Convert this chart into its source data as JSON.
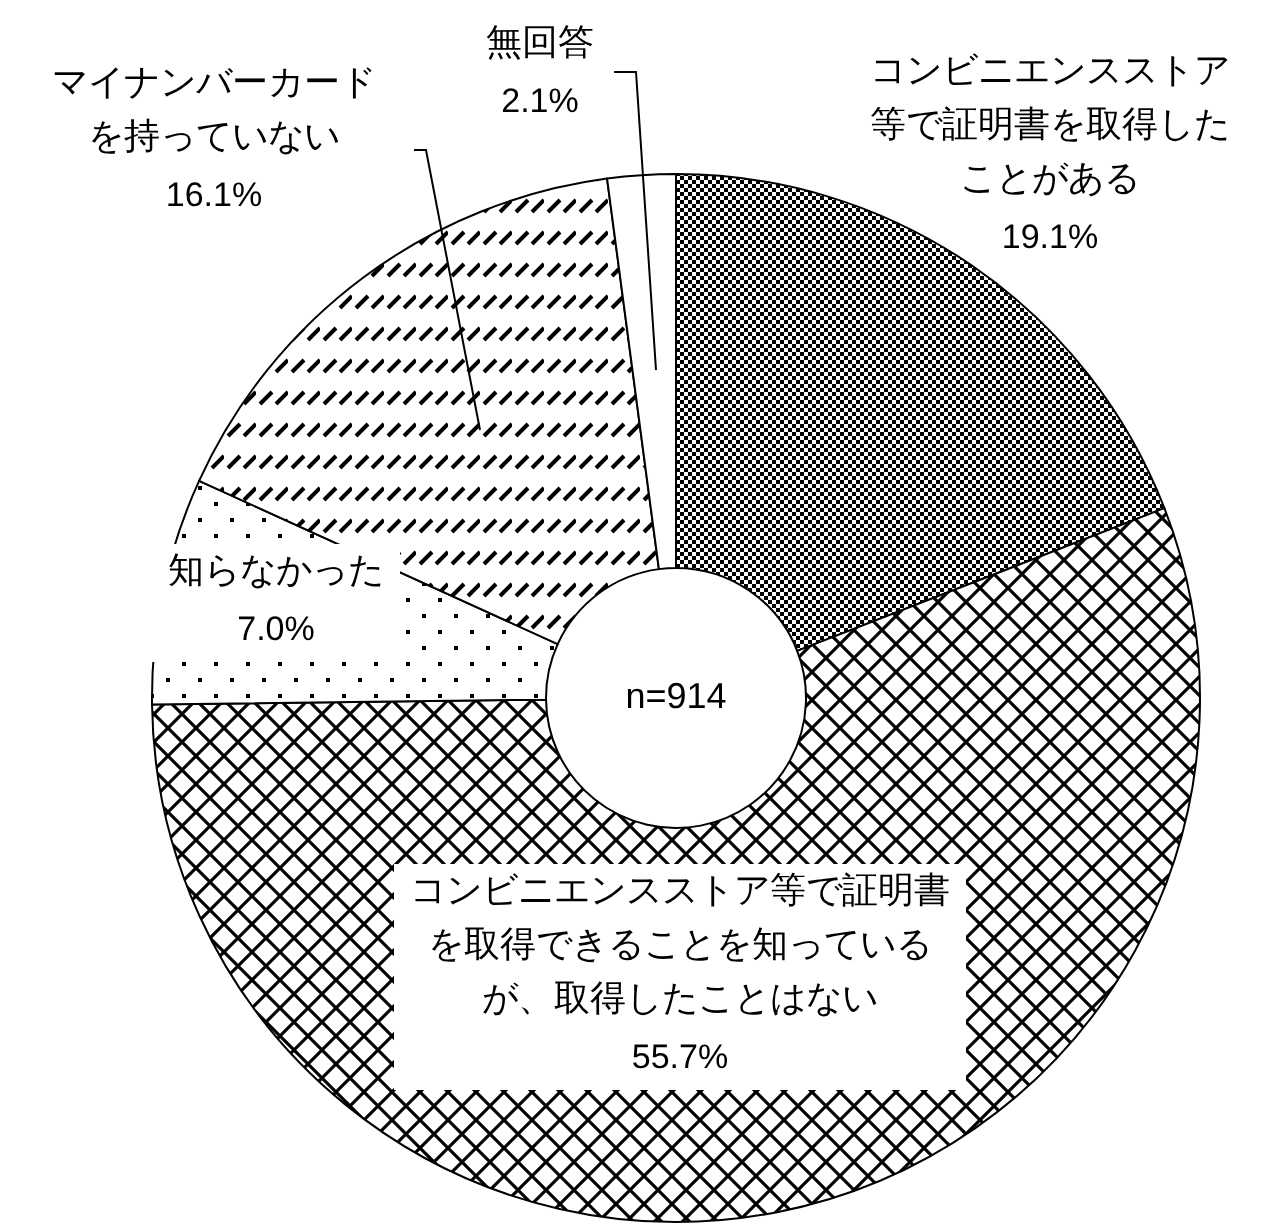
{
  "chart_data": {
    "type": "donut",
    "categories": [
      "コンビニエンスストア等で証明書を取得したことがある",
      "コンビニエンスストア等で証明書を取得できることを知っているが、取得したことはない",
      "知らなかった",
      "マイナンバーカードを持っていない",
      "無回答"
    ],
    "values": [
      19.1,
      55.7,
      7.0,
      16.1,
      2.1
    ],
    "value_labels": [
      "19.1%",
      "55.7%",
      "7.0%",
      "16.1%",
      "2.1%"
    ],
    "colors": [
      "#000000",
      "#000000",
      "#000000",
      "#000000",
      "#ffffff"
    ],
    "annotations": [
      "n=914"
    ]
  }
}
